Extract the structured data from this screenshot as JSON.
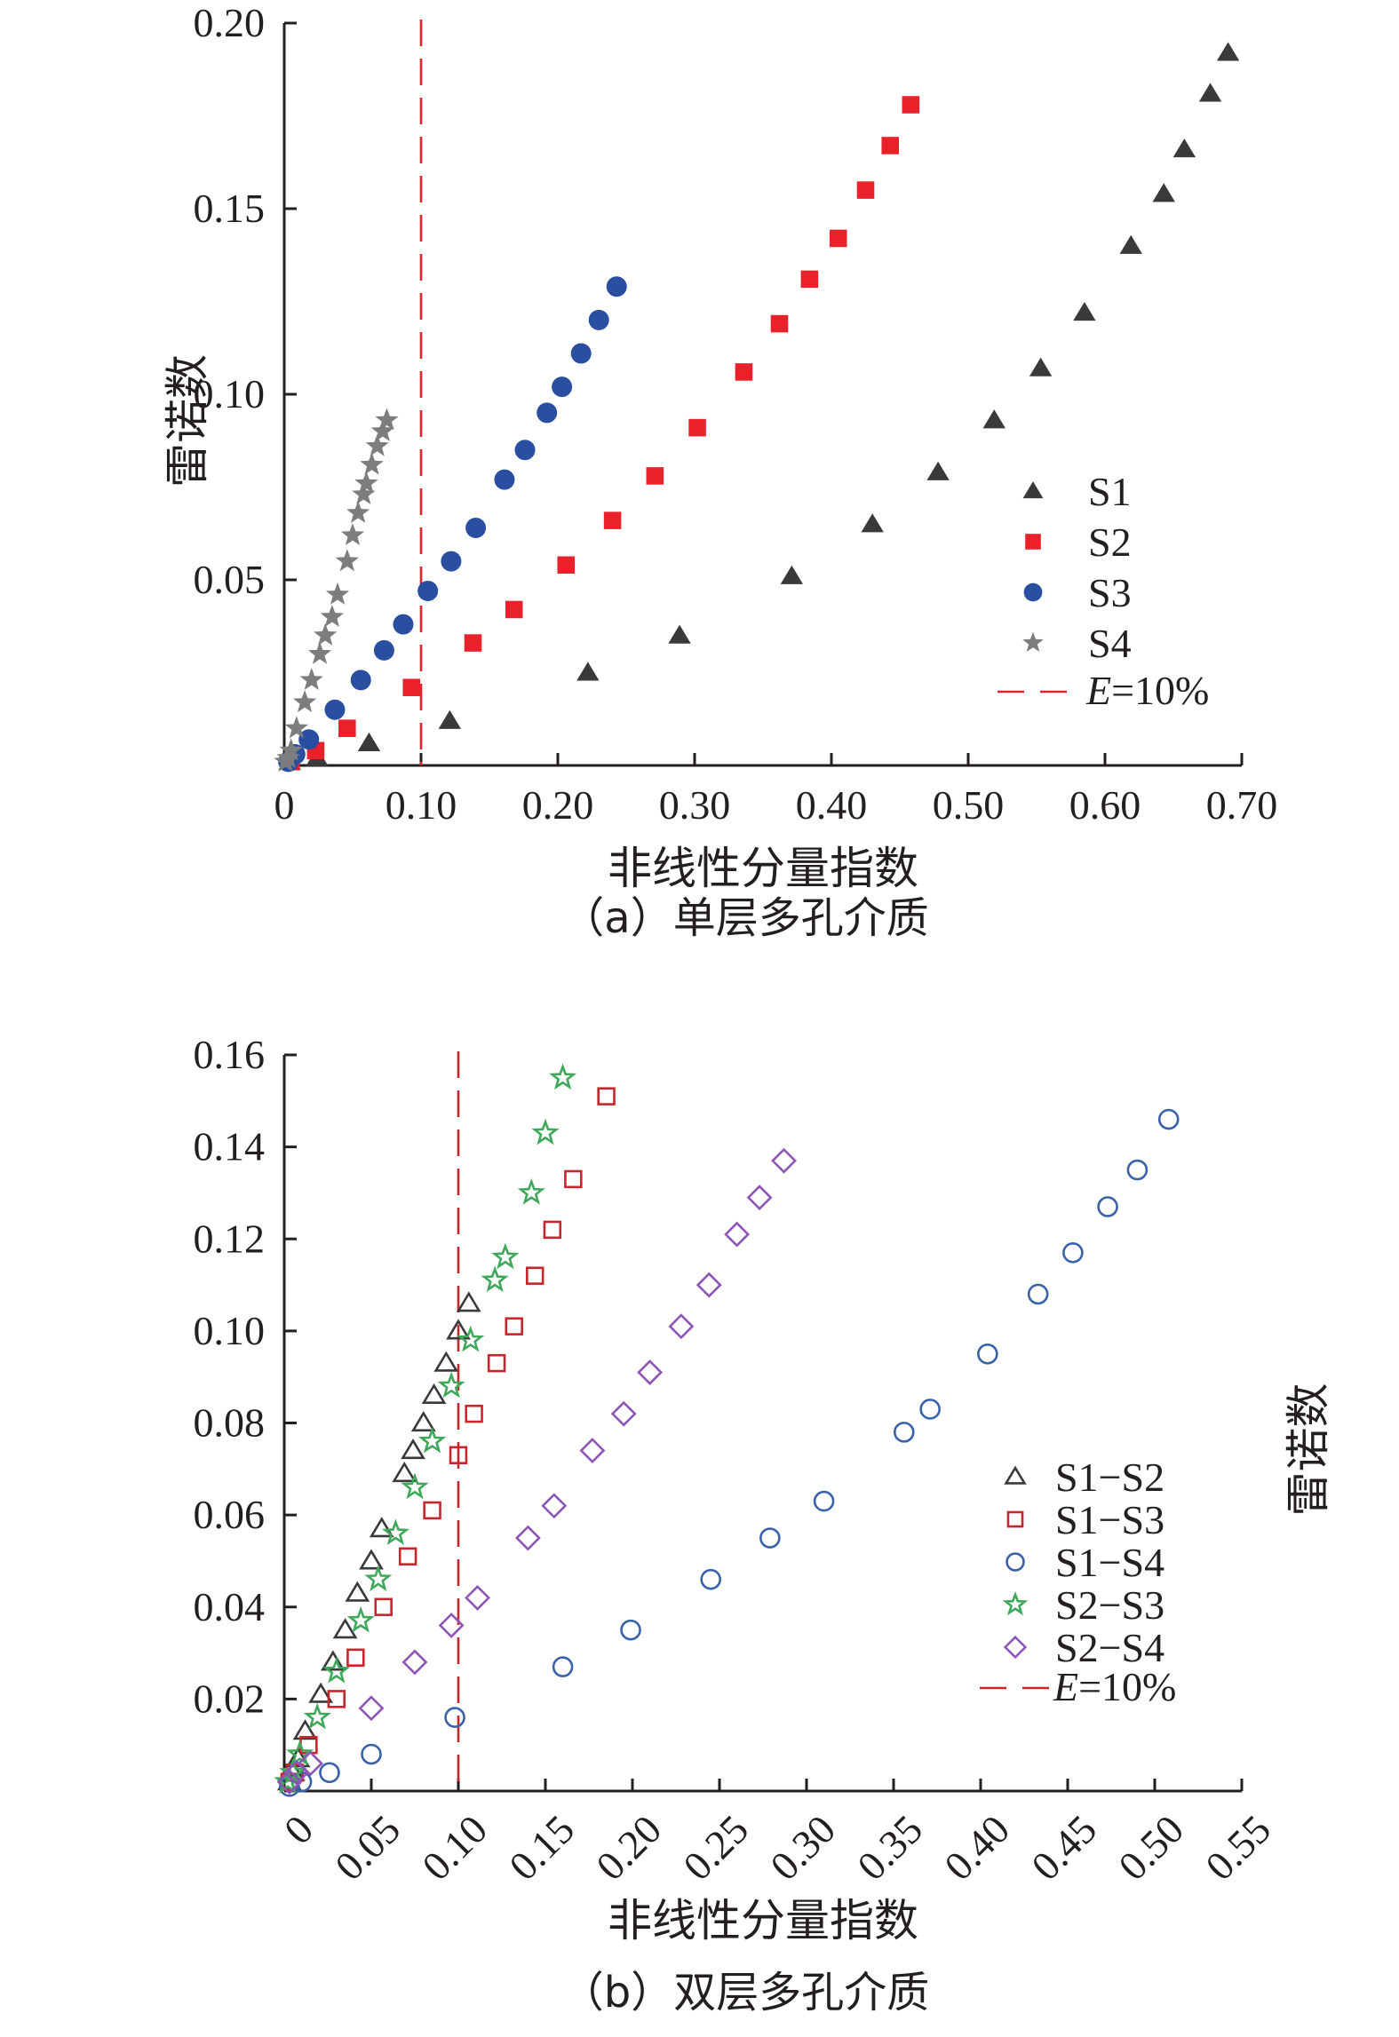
{
  "chart_data": [
    {
      "type": "scatter",
      "caption": "（a）单层多孔介质",
      "xlabel": "非线性分量指数",
      "ylabel": "雷诺数",
      "xlim": [
        0,
        0.7
      ],
      "ylim": [
        0,
        0.2
      ],
      "xticks": [
        0,
        0.1,
        0.2,
        0.3,
        0.4,
        0.5,
        0.6,
        0.7
      ],
      "xtick_labels": [
        "0",
        "0.10",
        "0.20",
        "0.30",
        "0.40",
        "0.50",
        "0.60",
        "0.70"
      ],
      "yticks": [
        0.05,
        0.1,
        0.15,
        0.2
      ],
      "ytick_labels": [
        "0.05",
        "0.10",
        "0.15",
        "0.20"
      ],
      "grid": false,
      "legend_position": "bottom-right",
      "threshold": {
        "x": 0.1,
        "label_var": "E",
        "label_rest": "=10%",
        "color": "#e8212b"
      },
      "series": [
        {
          "name": "S1",
          "marker": "triangle-filled",
          "color": "#3a3a3c",
          "x": [
            0.004,
            0.024,
            0.062,
            0.121,
            0.222,
            0.289,
            0.371,
            0.43,
            0.478,
            0.519,
            0.553,
            0.585,
            0.619,
            0.643,
            0.658,
            0.677,
            0.69
          ],
          "y": [
            0.001,
            0.002,
            0.006,
            0.012,
            0.025,
            0.035,
            0.051,
            0.065,
            0.079,
            0.093,
            0.107,
            0.122,
            0.14,
            0.154,
            0.166,
            0.181,
            0.192
          ]
        },
        {
          "name": "S2",
          "marker": "square-filled",
          "color": "#e8212b",
          "x": [
            0.005,
            0.023,
            0.046,
            0.093,
            0.138,
            0.168,
            0.206,
            0.24,
            0.271,
            0.302,
            0.336,
            0.362,
            0.384,
            0.405,
            0.425,
            0.443,
            0.458
          ],
          "y": [
            0.001,
            0.004,
            0.01,
            0.021,
            0.033,
            0.042,
            0.054,
            0.066,
            0.078,
            0.091,
            0.106,
            0.119,
            0.131,
            0.142,
            0.155,
            0.167,
            0.178
          ]
        },
        {
          "name": "S3",
          "marker": "circle-filled",
          "color": "#2a4ea0",
          "x": [
            0.003,
            0.008,
            0.018,
            0.037,
            0.056,
            0.073,
            0.087,
            0.105,
            0.122,
            0.14,
            0.161,
            0.176,
            0.192,
            0.203,
            0.217,
            0.23,
            0.243
          ],
          "y": [
            0.001,
            0.003,
            0.007,
            0.015,
            0.023,
            0.031,
            0.038,
            0.047,
            0.055,
            0.064,
            0.077,
            0.085,
            0.095,
            0.102,
            0.111,
            0.12,
            0.129
          ]
        },
        {
          "name": "S4",
          "marker": "star-filled",
          "color": "#7d7d80",
          "x": [
            0.001,
            0.003,
            0.005,
            0.009,
            0.015,
            0.02,
            0.026,
            0.03,
            0.035,
            0.039,
            0.046,
            0.05,
            0.054,
            0.058,
            0.06,
            0.064,
            0.068,
            0.072,
            0.075
          ],
          "y": [
            0.001,
            0.002,
            0.004,
            0.01,
            0.017,
            0.023,
            0.03,
            0.035,
            0.04,
            0.046,
            0.055,
            0.062,
            0.068,
            0.073,
            0.076,
            0.081,
            0.086,
            0.09,
            0.093
          ]
        }
      ]
    },
    {
      "type": "scatter",
      "caption": "（b）双层多孔介质",
      "xlabel": "非线性分量指数",
      "ylabel": "雷诺数",
      "xlim": [
        0,
        0.55
      ],
      "ylim": [
        0,
        0.16
      ],
      "xticks": [
        0,
        0.05,
        0.1,
        0.15,
        0.2,
        0.25,
        0.3,
        0.35,
        0.4,
        0.45,
        0.5,
        0.55
      ],
      "xtick_labels": [
        "0",
        "0.05",
        "0.10",
        "0.15",
        "0.20",
        "0.25",
        "0.30",
        "0.35",
        "0.40",
        "0.45",
        "0.50",
        "0.55"
      ],
      "yticks": [
        0.02,
        0.04,
        0.06,
        0.08,
        0.1,
        0.12,
        0.14,
        0.16
      ],
      "ytick_labels": [
        "0.02",
        "0.04",
        "0.06",
        "0.08",
        "0.10",
        "0.12",
        "0.14",
        "0.16"
      ],
      "grid": false,
      "legend_position": "right",
      "threshold": {
        "x": 0.1,
        "label_var": "E",
        "label_rest": "=10%",
        "color": "#c8262c"
      },
      "series": [
        {
          "name": "S1−S2",
          "marker": "triangle-open",
          "color": "#3a3a3c",
          "x": [
            0.003,
            0.005,
            0.008,
            0.012,
            0.021,
            0.028,
            0.035,
            0.042,
            0.05,
            0.056,
            0.069,
            0.074,
            0.08,
            0.086,
            0.093,
            0.1,
            0.106
          ],
          "y": [
            0.002,
            0.004,
            0.007,
            0.013,
            0.021,
            0.028,
            0.035,
            0.043,
            0.05,
            0.057,
            0.069,
            0.074,
            0.08,
            0.086,
            0.093,
            0.1,
            0.106
          ]
        },
        {
          "name": "S1−S3",
          "marker": "square-open",
          "color": "#c8262c",
          "x": [
            0.003,
            0.006,
            0.014,
            0.03,
            0.041,
            0.057,
            0.071,
            0.085,
            0.1,
            0.109,
            0.122,
            0.132,
            0.144,
            0.154,
            0.166,
            0.185
          ],
          "y": [
            0.002,
            0.004,
            0.01,
            0.02,
            0.029,
            0.04,
            0.051,
            0.061,
            0.073,
            0.082,
            0.093,
            0.101,
            0.112,
            0.122,
            0.133,
            0.151
          ]
        },
        {
          "name": "S1−S4",
          "marker": "circle-open",
          "color": "#3a62a8",
          "x": [
            0.003,
            0.01,
            0.026,
            0.05,
            0.098,
            0.16,
            0.199,
            0.245,
            0.279,
            0.31,
            0.356,
            0.371,
            0.404,
            0.433,
            0.453,
            0.473,
            0.49,
            0.508
          ],
          "y": [
            0.001,
            0.002,
            0.004,
            0.008,
            0.016,
            0.027,
            0.035,
            0.046,
            0.055,
            0.063,
            0.078,
            0.083,
            0.095,
            0.108,
            0.117,
            0.127,
            0.135,
            0.146
          ]
        },
        {
          "name": "S2−S3",
          "marker": "star-open",
          "color": "#3fa85a",
          "x": [
            0.002,
            0.005,
            0.009,
            0.019,
            0.03,
            0.044,
            0.054,
            0.064,
            0.075,
            0.085,
            0.096,
            0.107,
            0.121,
            0.127,
            0.142,
            0.15,
            0.16
          ],
          "y": [
            0.002,
            0.004,
            0.008,
            0.016,
            0.026,
            0.037,
            0.046,
            0.056,
            0.066,
            0.076,
            0.088,
            0.098,
            0.111,
            0.116,
            0.13,
            0.143,
            0.155
          ]
        },
        {
          "name": "S2−S4",
          "marker": "diamond-open",
          "color": "#8e55b6",
          "x": [
            0.003,
            0.007,
            0.015,
            0.05,
            0.075,
            0.096,
            0.111,
            0.14,
            0.155,
            0.177,
            0.195,
            0.21,
            0.228,
            0.244,
            0.26,
            0.273,
            0.287
          ],
          "y": [
            0.002,
            0.004,
            0.006,
            0.018,
            0.028,
            0.036,
            0.042,
            0.055,
            0.062,
            0.074,
            0.082,
            0.091,
            0.101,
            0.11,
            0.121,
            0.129,
            0.137
          ]
        }
      ]
    }
  ]
}
